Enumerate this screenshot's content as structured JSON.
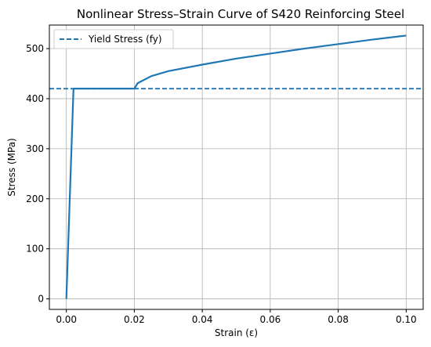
{
  "chart_data": {
    "type": "line",
    "title": "Nonlinear Stress–Strain Curve of S420 Reinforcing Steel",
    "xlabel": "Strain (ε)",
    "ylabel": "Stress (MPa)",
    "xlim": [
      -0.005,
      0.105
    ],
    "ylim": [
      -21,
      547
    ],
    "x_ticks": [
      0.0,
      0.02,
      0.04,
      0.06,
      0.08,
      0.1
    ],
    "x_tick_labels": [
      "0.00",
      "0.02",
      "0.04",
      "0.06",
      "0.08",
      "0.10"
    ],
    "y_ticks": [
      0,
      100,
      200,
      300,
      400,
      500
    ],
    "y_tick_labels": [
      "0",
      "100",
      "200",
      "300",
      "400",
      "500"
    ],
    "grid": true,
    "legend_position": "top-left",
    "series": [
      {
        "color": "#1f77b4",
        "style": "solid",
        "x": [
          0.0,
          0.0021,
          0.02,
          0.021,
          0.025,
          0.03,
          0.04,
          0.05,
          0.06,
          0.07,
          0.08,
          0.09,
          0.1
        ],
        "y": [
          0,
          420,
          420,
          431,
          445,
          455,
          468,
          480,
          490,
          500,
          509,
          518,
          526
        ]
      },
      {
        "name": "Yield Stress (fy)",
        "color": "#1f77b4",
        "style": "dashed",
        "type": "hline",
        "y": 420
      }
    ]
  }
}
